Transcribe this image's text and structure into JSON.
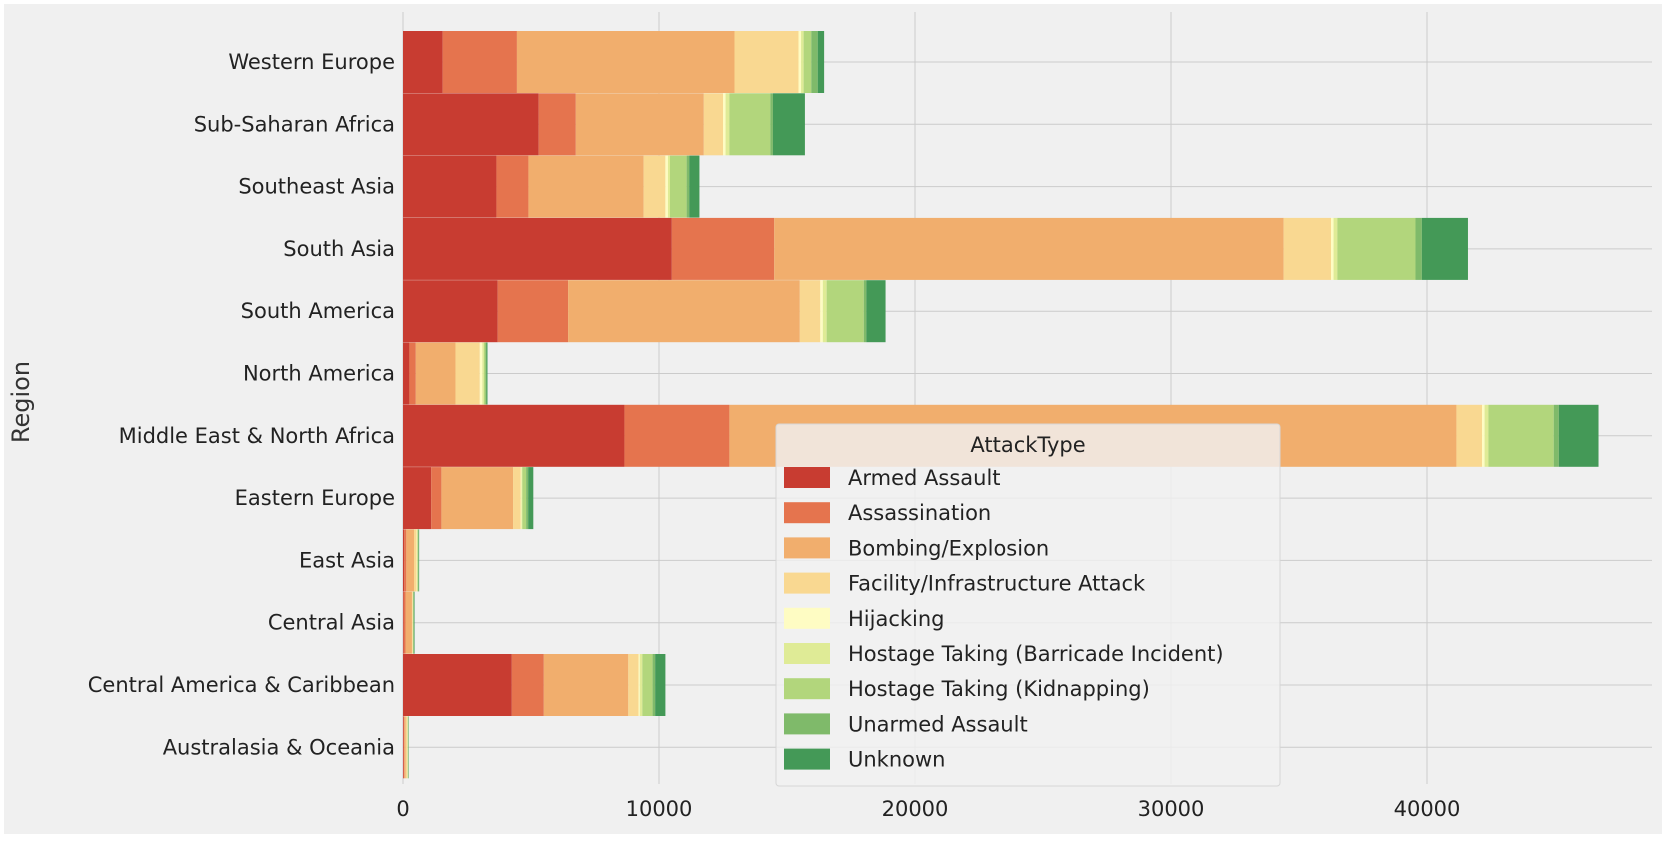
{
  "chart_data": {
    "type": "bar",
    "orientation": "horizontal",
    "stacked": true,
    "title": "",
    "xlabel": "",
    "ylabel": "Region",
    "xlim": [
      0,
      48800
    ],
    "xticks": [
      0,
      10000,
      20000,
      30000,
      40000
    ],
    "grid": true,
    "legend": {
      "title": "AttackType",
      "placement": "lower-center"
    },
    "categories": [
      "Western Europe",
      "Sub-Saharan Africa",
      "Southeast Asia",
      "South Asia",
      "South America",
      "North America",
      "Middle East & North Africa",
      "Eastern Europe",
      "East Asia",
      "Central Asia",
      "Central America & Caribbean",
      "Australasia & Oceania"
    ],
    "series": [
      {
        "name": "Armed Assault",
        "color": "#c83c31",
        "values": [
          1550,
          5300,
          3650,
          10500,
          3700,
          250,
          8650,
          1100,
          50,
          30,
          4250,
          30
        ]
      },
      {
        "name": "Assassination",
        "color": "#e5744e",
        "values": [
          2900,
          1450,
          1250,
          4000,
          2750,
          250,
          4100,
          400,
          80,
          70,
          1250,
          20
        ]
      },
      {
        "name": "Bombing/Explosion",
        "color": "#f1ae6d",
        "values": [
          8500,
          5000,
          4500,
          19900,
          9050,
          1550,
          28400,
          2800,
          300,
          250,
          3300,
          60
        ]
      },
      {
        "name": "Facility/Infrastructure Attack",
        "color": "#f9d891",
        "values": [
          2500,
          750,
          850,
          1850,
          800,
          950,
          1000,
          300,
          100,
          30,
          400,
          60
        ]
      },
      {
        "name": "Hijacking",
        "color": "#fefcc3",
        "values": [
          100,
          100,
          100,
          100,
          100,
          100,
          100,
          30,
          20,
          5,
          50,
          5
        ]
      },
      {
        "name": "Hostage Taking (Barricade Incident)",
        "color": "#dfeb96",
        "values": [
          100,
          150,
          80,
          150,
          150,
          60,
          150,
          30,
          20,
          5,
          100,
          10
        ]
      },
      {
        "name": "Hostage Taking (Kidnapping)",
        "color": "#b2d67c",
        "values": [
          300,
          1600,
          650,
          3050,
          1450,
          60,
          2550,
          150,
          20,
          20,
          400,
          20
        ]
      },
      {
        "name": "Unarmed Assault",
        "color": "#7fba6a",
        "values": [
          250,
          100,
          100,
          250,
          100,
          40,
          200,
          80,
          20,
          10,
          100,
          10
        ]
      },
      {
        "name": "Unknown",
        "color": "#449957",
        "values": [
          250,
          1250,
          400,
          1800,
          750,
          40,
          1550,
          200,
          20,
          30,
          400,
          10
        ]
      }
    ]
  }
}
